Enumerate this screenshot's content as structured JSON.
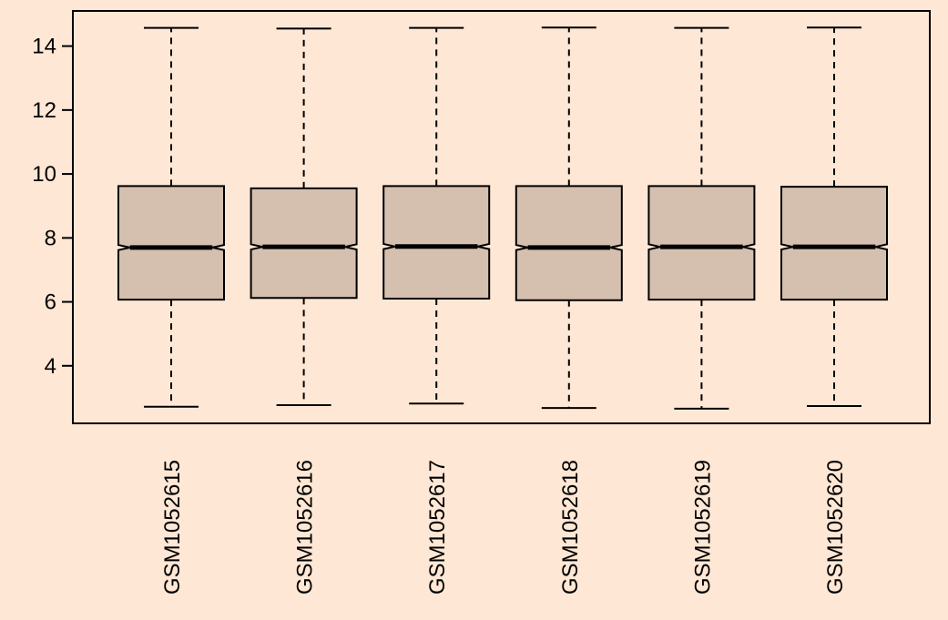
{
  "chart_data": {
    "type": "boxplot",
    "title": "",
    "xlabel": "",
    "ylabel": "",
    "ylim": [
      2.2,
      15.1
    ],
    "yticks": [
      4,
      6,
      8,
      10,
      12,
      14
    ],
    "categories": [
      "GSM1052615",
      "GSM1052616",
      "GSM1052617",
      "GSM1052618",
      "GSM1052619",
      "GSM1052620"
    ],
    "box_color": "#d5bfae",
    "background_color": "#fee7d4",
    "notched": true,
    "boxes": [
      {
        "label": "GSM1052615",
        "whisker_low": 2.72,
        "q1": 6.07,
        "median": 7.7,
        "q3": 9.62,
        "whisker_high": 14.57,
        "notch_low": 7.62,
        "notch_high": 7.78
      },
      {
        "label": "GSM1052616",
        "whisker_low": 2.77,
        "q1": 6.12,
        "median": 7.72,
        "q3": 9.55,
        "whisker_high": 14.55,
        "notch_low": 7.64,
        "notch_high": 7.8
      },
      {
        "label": "GSM1052617",
        "whisker_low": 2.82,
        "q1": 6.1,
        "median": 7.73,
        "q3": 9.62,
        "whisker_high": 14.57,
        "notch_low": 7.65,
        "notch_high": 7.81
      },
      {
        "label": "GSM1052618",
        "whisker_low": 2.68,
        "q1": 6.05,
        "median": 7.7,
        "q3": 9.62,
        "whisker_high": 14.58,
        "notch_low": 7.62,
        "notch_high": 7.78
      },
      {
        "label": "GSM1052619",
        "whisker_low": 2.66,
        "q1": 6.07,
        "median": 7.72,
        "q3": 9.62,
        "whisker_high": 14.57,
        "notch_low": 7.64,
        "notch_high": 7.8
      },
      {
        "label": "GSM1052620",
        "whisker_low": 2.74,
        "q1": 6.07,
        "median": 7.72,
        "q3": 9.6,
        "whisker_high": 14.58,
        "notch_low": 7.64,
        "notch_high": 7.8
      }
    ]
  }
}
